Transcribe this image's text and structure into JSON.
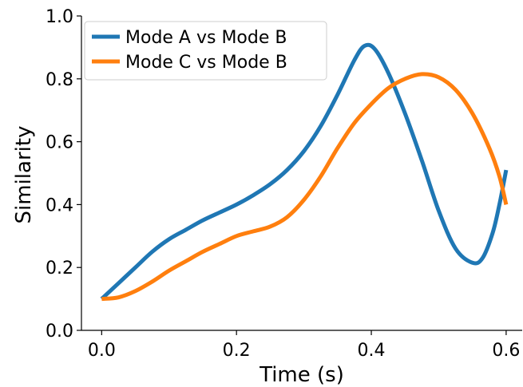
{
  "chart_data": {
    "type": "line",
    "xlabel": "Time (s)",
    "ylabel": "Similarity",
    "xlim": [
      -0.03,
      0.625
    ],
    "ylim": [
      0.0,
      1.0
    ],
    "xticks": [
      0.0,
      0.2,
      0.4,
      0.6
    ],
    "xtick_labels": [
      "0.0",
      "0.2",
      "0.4",
      "0.6"
    ],
    "yticks": [
      0.0,
      0.2,
      0.4,
      0.6,
      0.8,
      1.0
    ],
    "ytick_labels": [
      "0.0",
      "0.2",
      "0.4",
      "0.6",
      "0.8",
      "1.0"
    ],
    "grid": false,
    "legend_position": "top-left",
    "series": [
      {
        "name": "Mode A vs Mode B",
        "color": "#1f77b4",
        "points": [
          [
            0.0,
            0.1
          ],
          [
            0.025,
            0.15
          ],
          [
            0.05,
            0.2
          ],
          [
            0.075,
            0.25
          ],
          [
            0.1,
            0.29
          ],
          [
            0.125,
            0.32
          ],
          [
            0.15,
            0.35
          ],
          [
            0.175,
            0.375
          ],
          [
            0.2,
            0.4
          ],
          [
            0.225,
            0.43
          ],
          [
            0.25,
            0.465
          ],
          [
            0.275,
            0.51
          ],
          [
            0.3,
            0.57
          ],
          [
            0.325,
            0.65
          ],
          [
            0.35,
            0.75
          ],
          [
            0.375,
            0.86
          ],
          [
            0.39,
            0.905
          ],
          [
            0.405,
            0.895
          ],
          [
            0.425,
            0.82
          ],
          [
            0.45,
            0.69
          ],
          [
            0.475,
            0.54
          ],
          [
            0.5,
            0.38
          ],
          [
            0.525,
            0.26
          ],
          [
            0.55,
            0.215
          ],
          [
            0.565,
            0.23
          ],
          [
            0.58,
            0.31
          ],
          [
            0.59,
            0.4
          ],
          [
            0.6,
            0.51
          ]
        ]
      },
      {
        "name": "Mode C vs Mode B",
        "color": "#ff7f0e",
        "points": [
          [
            0.0,
            0.1
          ],
          [
            0.025,
            0.105
          ],
          [
            0.05,
            0.125
          ],
          [
            0.075,
            0.155
          ],
          [
            0.1,
            0.19
          ],
          [
            0.125,
            0.22
          ],
          [
            0.15,
            0.25
          ],
          [
            0.175,
            0.275
          ],
          [
            0.2,
            0.3
          ],
          [
            0.225,
            0.315
          ],
          [
            0.25,
            0.33
          ],
          [
            0.275,
            0.36
          ],
          [
            0.3,
            0.415
          ],
          [
            0.325,
            0.49
          ],
          [
            0.35,
            0.58
          ],
          [
            0.375,
            0.66
          ],
          [
            0.4,
            0.72
          ],
          [
            0.425,
            0.77
          ],
          [
            0.45,
            0.8
          ],
          [
            0.475,
            0.815
          ],
          [
            0.5,
            0.805
          ],
          [
            0.525,
            0.765
          ],
          [
            0.55,
            0.69
          ],
          [
            0.575,
            0.58
          ],
          [
            0.59,
            0.49
          ],
          [
            0.6,
            0.4
          ]
        ]
      }
    ]
  }
}
